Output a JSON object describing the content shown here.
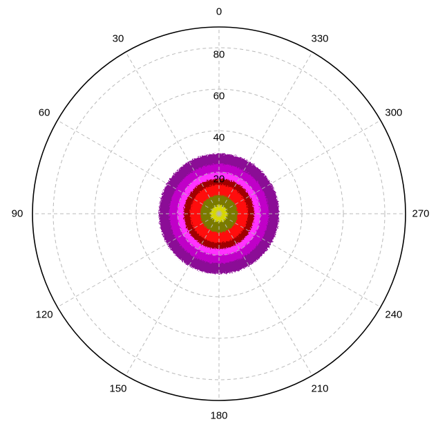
{
  "chart_data": {
    "type": "heatmap",
    "projection": "polar",
    "angle_direction": "counterclockwise",
    "angle_zero": "top",
    "angle_ticks": [
      0,
      30,
      60,
      90,
      120,
      150,
      180,
      210,
      240,
      270,
      300,
      330
    ],
    "angle_tick_labels": [
      "0",
      "30",
      "60",
      "90",
      "120",
      "150",
      "180",
      "210",
      "240",
      "270",
      "300",
      "330"
    ],
    "radial_ticks": [
      20,
      40,
      60,
      80
    ],
    "radial_tick_labels": [
      "20",
      "40",
      "60",
      "80"
    ],
    "rlim": [
      0,
      90
    ],
    "grid": true,
    "contour_levels": [
      {
        "level": 1,
        "r_max": 29,
        "color": "#8b0a96"
      },
      {
        "level": 2,
        "r_max": 24,
        "color": "#c000c8"
      },
      {
        "level": 3,
        "r_max": 20,
        "color": "#ff30ff"
      },
      {
        "level": 4,
        "r_max": 17,
        "color": "#a00000"
      },
      {
        "level": 5,
        "r_max": 14,
        "color": "#ff1010"
      },
      {
        "level": 6,
        "r_max": 9,
        "color": "#7a7a00"
      },
      {
        "level": 7,
        "r_max": 4,
        "color": "#d8d800"
      }
    ]
  }
}
